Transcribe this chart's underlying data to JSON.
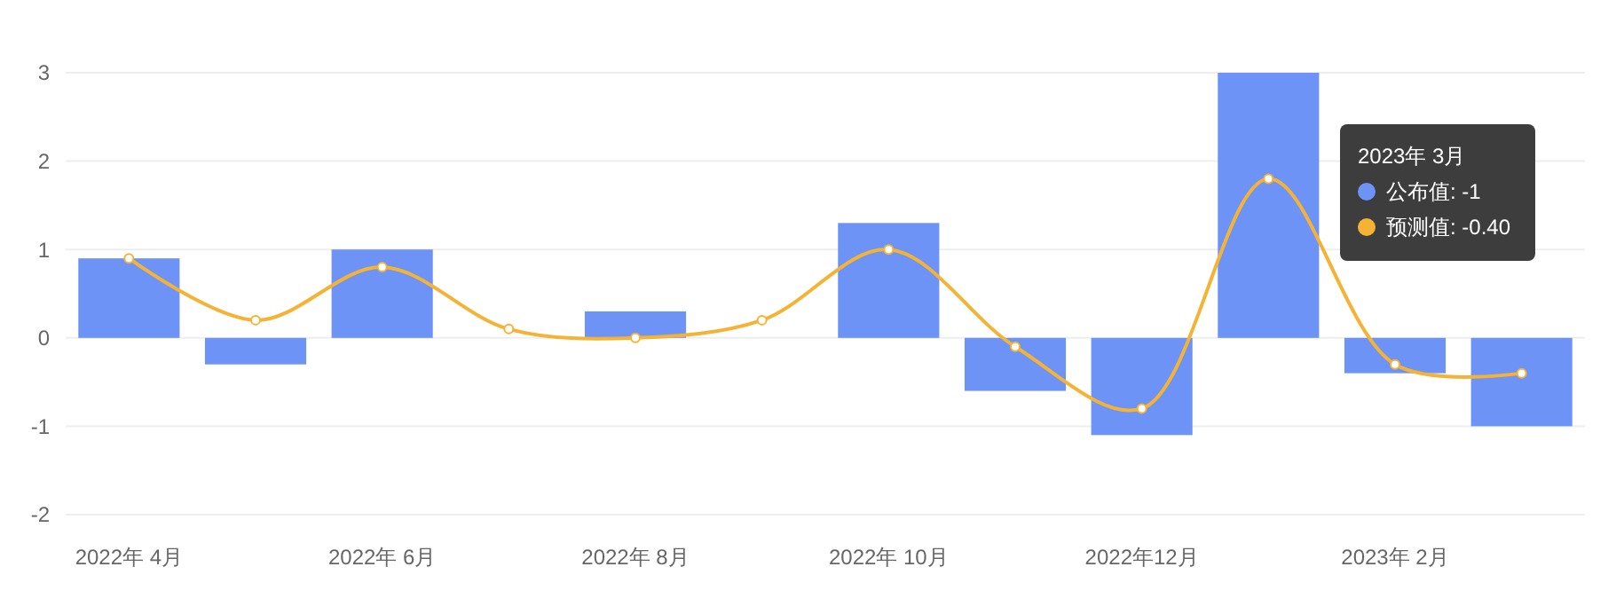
{
  "chart_data": {
    "type": "bar",
    "categories": [
      "2022年 4月",
      null,
      "2022年 6月",
      null,
      "2022年 8月",
      null,
      "2022年 10月",
      null,
      "2022年12月",
      null,
      "2023年 2月",
      null
    ],
    "series": [
      {
        "color": "#6c93f5",
        "values": [
          0.9,
          -0.3,
          1.0,
          0,
          0.3,
          0,
          1.3,
          -0.6,
          -1.1,
          3.0,
          -0.4,
          -1
        ]
      },
      {
        "type": "line",
        "color": "#f5b335",
        "values": [
          0.9,
          0.2,
          0.8,
          0.1,
          0.0,
          0.2,
          1.0,
          -0.1,
          -0.8,
          1.8,
          -0.3,
          -0.4
        ]
      }
    ],
    "ylim": [
      -2,
      3
    ],
    "yticks": [
      -2,
      -1,
      0,
      1,
      2,
      3
    ],
    "grid": "y",
    "marker": "circle",
    "annotations": [
      "2023年 3月",
      "公布值: -1",
      "预测值: -0.40"
    ]
  }
}
